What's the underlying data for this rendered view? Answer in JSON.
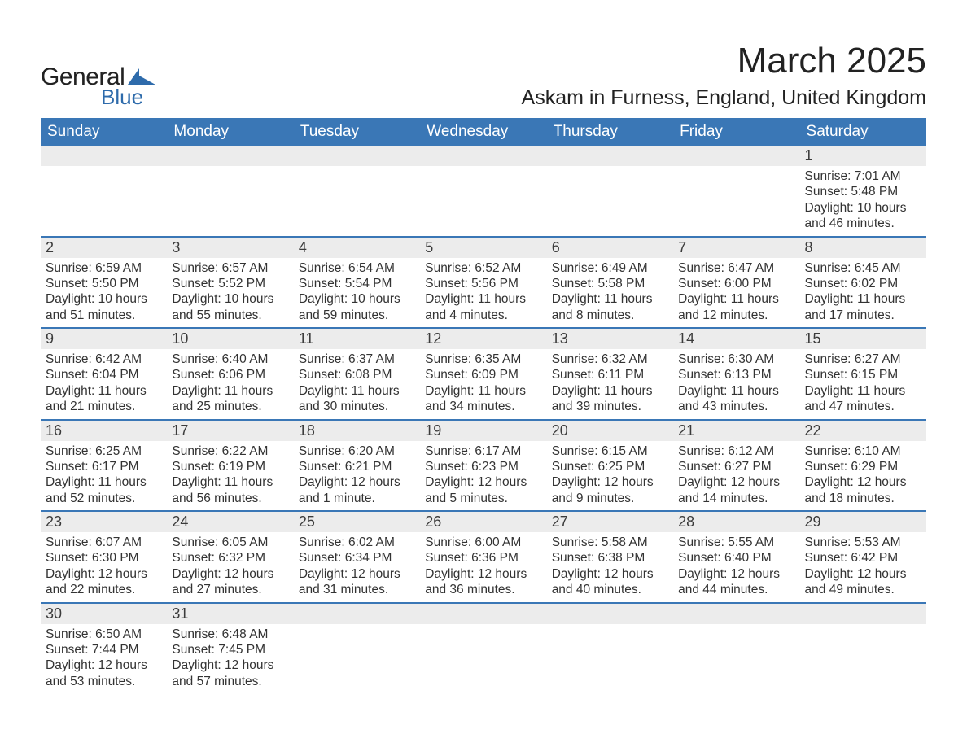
{
  "logo": {
    "general": "General",
    "blue": "Blue",
    "triangle_color": "#2e6bab"
  },
  "title": "March 2025",
  "location": "Askam in Furness, England, United Kingdom",
  "colors": {
    "header_bg": "#3a77b6",
    "header_text": "#ffffff",
    "daynum_bg": "#ececec",
    "row_border": "#3a77b6",
    "text": "#333333",
    "background": "#ffffff"
  },
  "font": {
    "family": "Arial",
    "daynum_size_pt": 14,
    "body_size_pt": 12,
    "title_size_pt": 33,
    "location_size_pt": 19
  },
  "weekdays": [
    "Sunday",
    "Monday",
    "Tuesday",
    "Wednesday",
    "Thursday",
    "Friday",
    "Saturday"
  ],
  "weeks": [
    [
      null,
      null,
      null,
      null,
      null,
      null,
      {
        "n": "1",
        "sunrise": "Sunrise: 7:01 AM",
        "sunset": "Sunset: 5:48 PM",
        "day": "Daylight: 10 hours and 46 minutes."
      }
    ],
    [
      {
        "n": "2",
        "sunrise": "Sunrise: 6:59 AM",
        "sunset": "Sunset: 5:50 PM",
        "day": "Daylight: 10 hours and 51 minutes."
      },
      {
        "n": "3",
        "sunrise": "Sunrise: 6:57 AM",
        "sunset": "Sunset: 5:52 PM",
        "day": "Daylight: 10 hours and 55 minutes."
      },
      {
        "n": "4",
        "sunrise": "Sunrise: 6:54 AM",
        "sunset": "Sunset: 5:54 PM",
        "day": "Daylight: 10 hours and 59 minutes."
      },
      {
        "n": "5",
        "sunrise": "Sunrise: 6:52 AM",
        "sunset": "Sunset: 5:56 PM",
        "day": "Daylight: 11 hours and 4 minutes."
      },
      {
        "n": "6",
        "sunrise": "Sunrise: 6:49 AM",
        "sunset": "Sunset: 5:58 PM",
        "day": "Daylight: 11 hours and 8 minutes."
      },
      {
        "n": "7",
        "sunrise": "Sunrise: 6:47 AM",
        "sunset": "Sunset: 6:00 PM",
        "day": "Daylight: 11 hours and 12 minutes."
      },
      {
        "n": "8",
        "sunrise": "Sunrise: 6:45 AM",
        "sunset": "Sunset: 6:02 PM",
        "day": "Daylight: 11 hours and 17 minutes."
      }
    ],
    [
      {
        "n": "9",
        "sunrise": "Sunrise: 6:42 AM",
        "sunset": "Sunset: 6:04 PM",
        "day": "Daylight: 11 hours and 21 minutes."
      },
      {
        "n": "10",
        "sunrise": "Sunrise: 6:40 AM",
        "sunset": "Sunset: 6:06 PM",
        "day": "Daylight: 11 hours and 25 minutes."
      },
      {
        "n": "11",
        "sunrise": "Sunrise: 6:37 AM",
        "sunset": "Sunset: 6:08 PM",
        "day": "Daylight: 11 hours and 30 minutes."
      },
      {
        "n": "12",
        "sunrise": "Sunrise: 6:35 AM",
        "sunset": "Sunset: 6:09 PM",
        "day": "Daylight: 11 hours and 34 minutes."
      },
      {
        "n": "13",
        "sunrise": "Sunrise: 6:32 AM",
        "sunset": "Sunset: 6:11 PM",
        "day": "Daylight: 11 hours and 39 minutes."
      },
      {
        "n": "14",
        "sunrise": "Sunrise: 6:30 AM",
        "sunset": "Sunset: 6:13 PM",
        "day": "Daylight: 11 hours and 43 minutes."
      },
      {
        "n": "15",
        "sunrise": "Sunrise: 6:27 AM",
        "sunset": "Sunset: 6:15 PM",
        "day": "Daylight: 11 hours and 47 minutes."
      }
    ],
    [
      {
        "n": "16",
        "sunrise": "Sunrise: 6:25 AM",
        "sunset": "Sunset: 6:17 PM",
        "day": "Daylight: 11 hours and 52 minutes."
      },
      {
        "n": "17",
        "sunrise": "Sunrise: 6:22 AM",
        "sunset": "Sunset: 6:19 PM",
        "day": "Daylight: 11 hours and 56 minutes."
      },
      {
        "n": "18",
        "sunrise": "Sunrise: 6:20 AM",
        "sunset": "Sunset: 6:21 PM",
        "day": "Daylight: 12 hours and 1 minute."
      },
      {
        "n": "19",
        "sunrise": "Sunrise: 6:17 AM",
        "sunset": "Sunset: 6:23 PM",
        "day": "Daylight: 12 hours and 5 minutes."
      },
      {
        "n": "20",
        "sunrise": "Sunrise: 6:15 AM",
        "sunset": "Sunset: 6:25 PM",
        "day": "Daylight: 12 hours and 9 minutes."
      },
      {
        "n": "21",
        "sunrise": "Sunrise: 6:12 AM",
        "sunset": "Sunset: 6:27 PM",
        "day": "Daylight: 12 hours and 14 minutes."
      },
      {
        "n": "22",
        "sunrise": "Sunrise: 6:10 AM",
        "sunset": "Sunset: 6:29 PM",
        "day": "Daylight: 12 hours and 18 minutes."
      }
    ],
    [
      {
        "n": "23",
        "sunrise": "Sunrise: 6:07 AM",
        "sunset": "Sunset: 6:30 PM",
        "day": "Daylight: 12 hours and 22 minutes."
      },
      {
        "n": "24",
        "sunrise": "Sunrise: 6:05 AM",
        "sunset": "Sunset: 6:32 PM",
        "day": "Daylight: 12 hours and 27 minutes."
      },
      {
        "n": "25",
        "sunrise": "Sunrise: 6:02 AM",
        "sunset": "Sunset: 6:34 PM",
        "day": "Daylight: 12 hours and 31 minutes."
      },
      {
        "n": "26",
        "sunrise": "Sunrise: 6:00 AM",
        "sunset": "Sunset: 6:36 PM",
        "day": "Daylight: 12 hours and 36 minutes."
      },
      {
        "n": "27",
        "sunrise": "Sunrise: 5:58 AM",
        "sunset": "Sunset: 6:38 PM",
        "day": "Daylight: 12 hours and 40 minutes."
      },
      {
        "n": "28",
        "sunrise": "Sunrise: 5:55 AM",
        "sunset": "Sunset: 6:40 PM",
        "day": "Daylight: 12 hours and 44 minutes."
      },
      {
        "n": "29",
        "sunrise": "Sunrise: 5:53 AM",
        "sunset": "Sunset: 6:42 PM",
        "day": "Daylight: 12 hours and 49 minutes."
      }
    ],
    [
      {
        "n": "30",
        "sunrise": "Sunrise: 6:50 AM",
        "sunset": "Sunset: 7:44 PM",
        "day": "Daylight: 12 hours and 53 minutes."
      },
      {
        "n": "31",
        "sunrise": "Sunrise: 6:48 AM",
        "sunset": "Sunset: 7:45 PM",
        "day": "Daylight: 12 hours and 57 minutes."
      },
      null,
      null,
      null,
      null,
      null
    ]
  ]
}
